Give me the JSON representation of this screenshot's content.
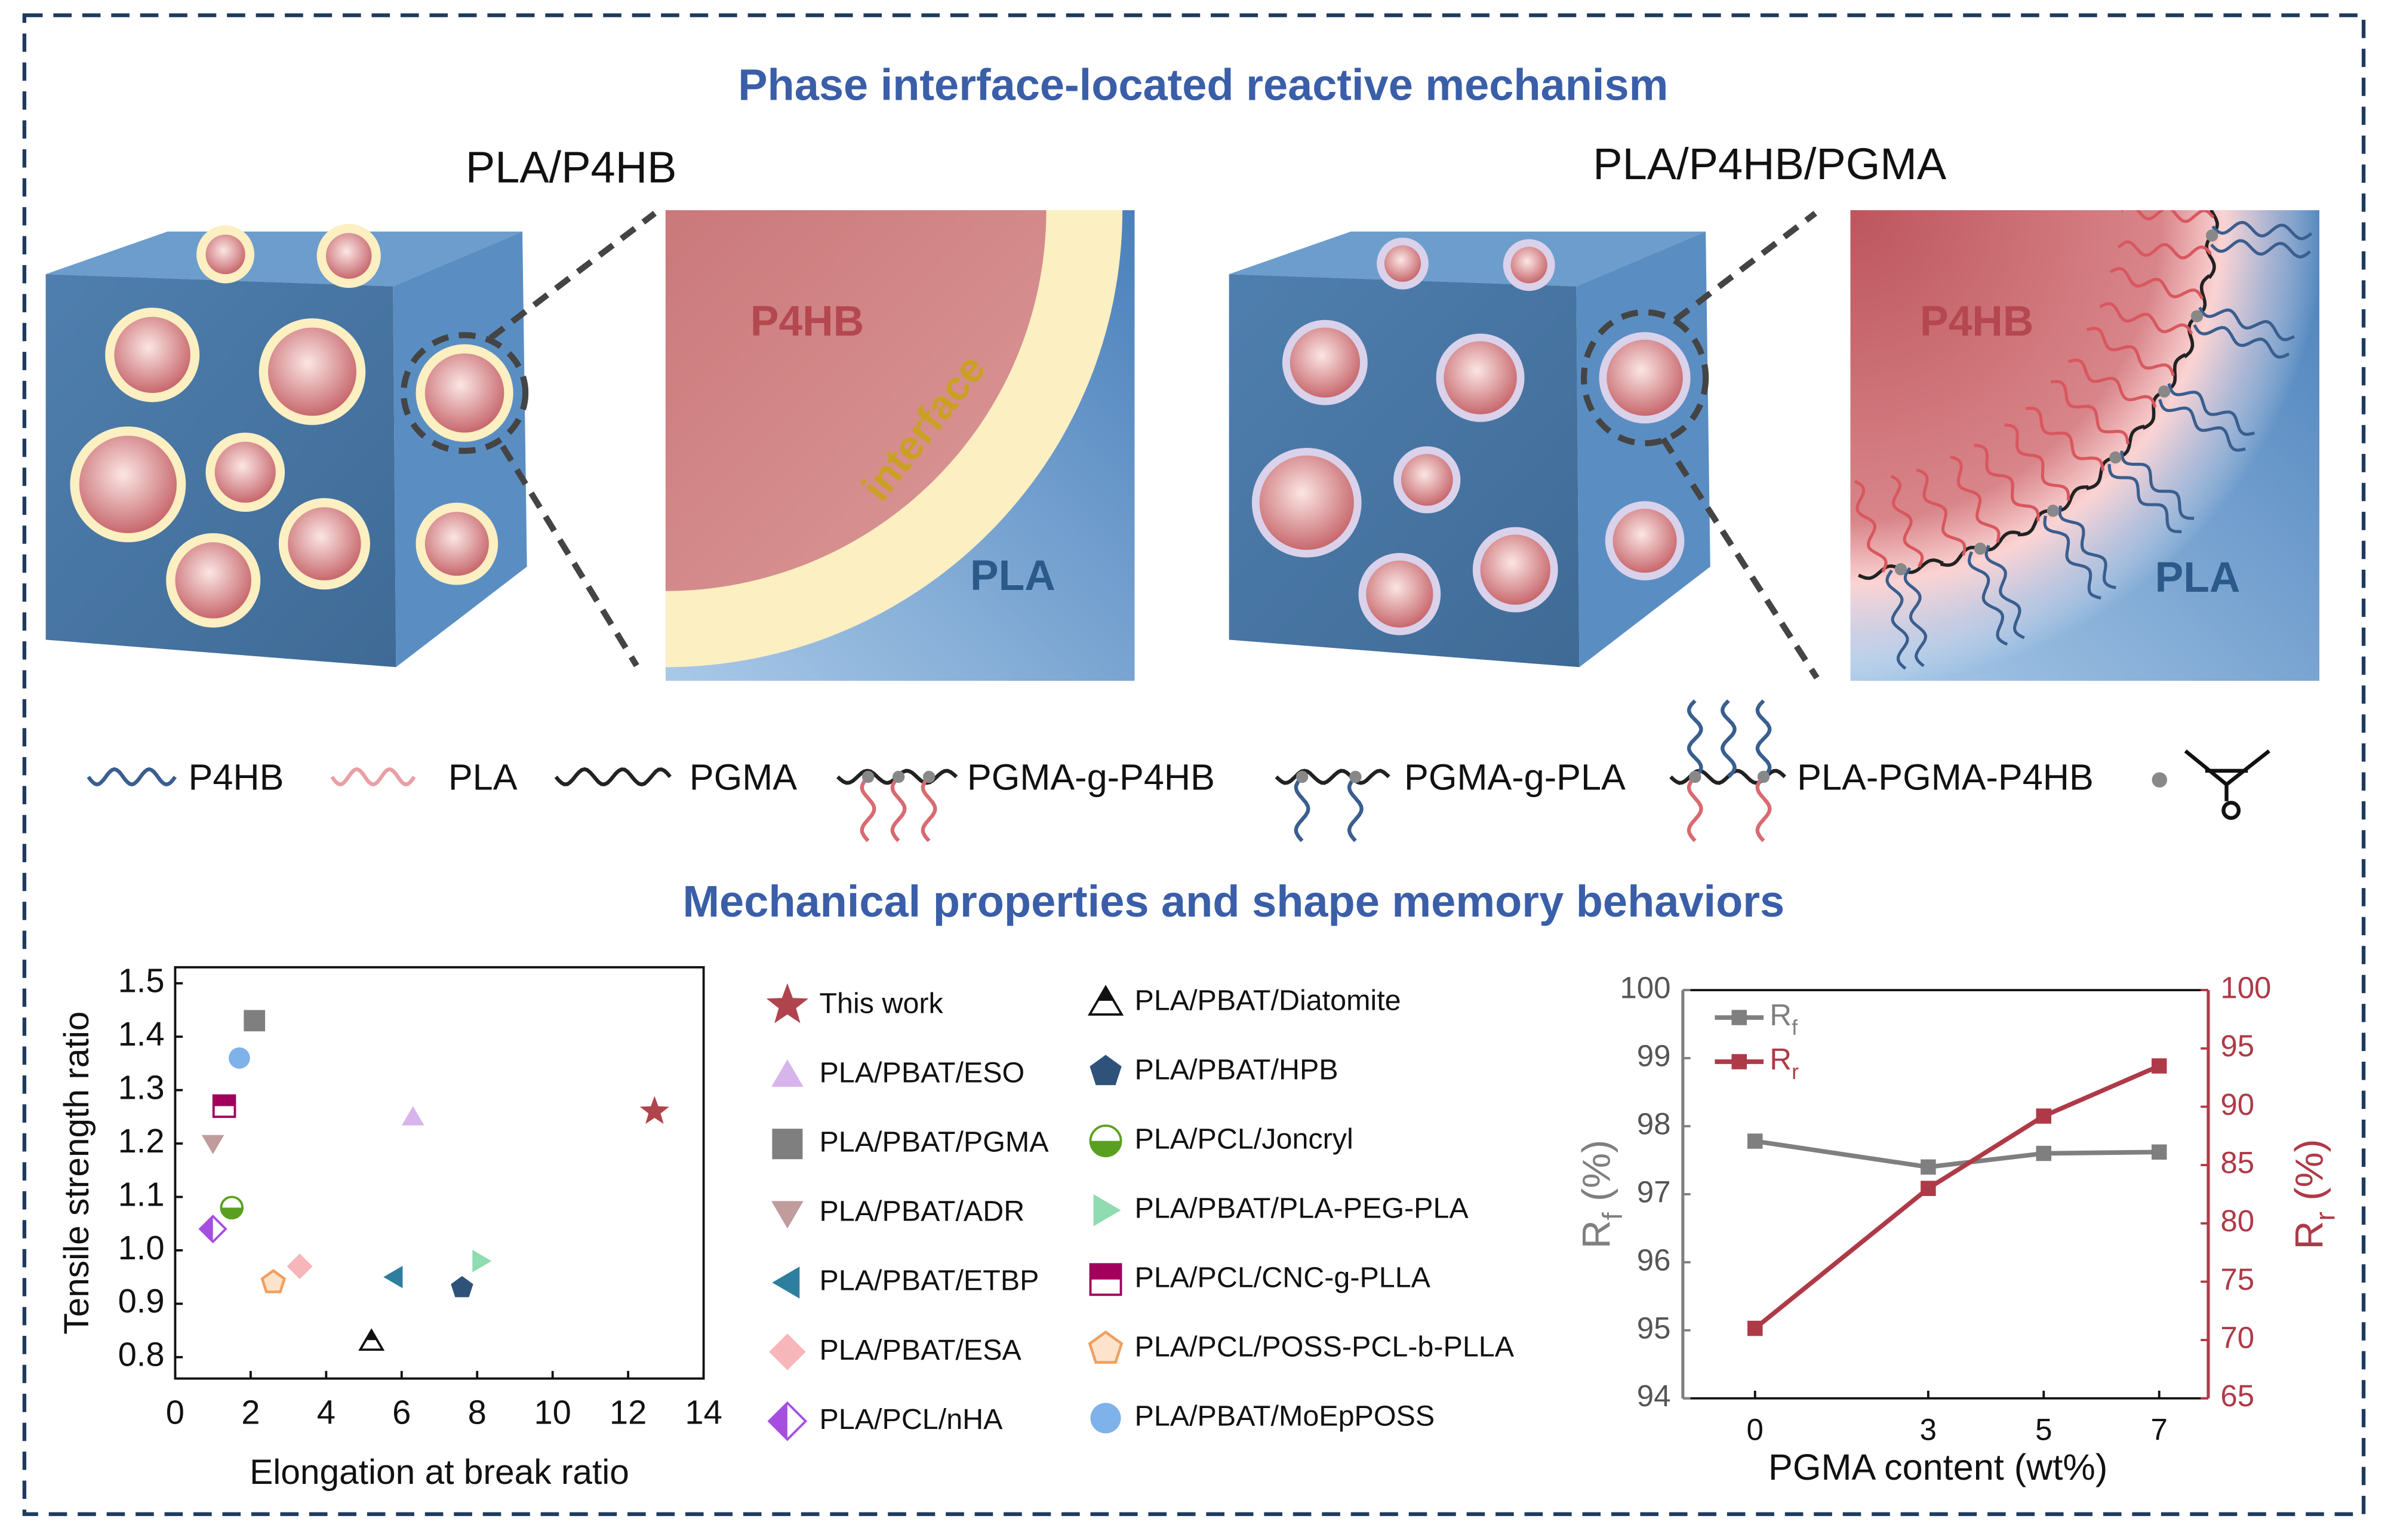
{
  "title": "Phase interface-located reactive mechanism",
  "mechanism": {
    "left": {
      "label": "PLA/P4HB",
      "zoom": {
        "core": "P4HB",
        "interface": "interface",
        "matrix": "PLA"
      }
    },
    "right": {
      "label": "PLA/P4HB/PGMA",
      "zoom": {
        "core": "P4HB",
        "matrix": "PLA"
      }
    }
  },
  "legend": [
    "P4HB",
    "PLA",
    "PGMA",
    "PGMA-g-P4HB",
    "PGMA-g-PLA",
    "PLA-PGMA-P4HB"
  ],
  "section_title": "Mechanical properties and shape memory behaviors",
  "chart_data": [
    {
      "type": "scatter",
      "x_label": "Elongation at break ratio",
      "y_label": "Tensile strength ratio",
      "xlim": [
        0,
        14
      ],
      "xticks": [
        0,
        2,
        4,
        6,
        8,
        10,
        12,
        14
      ],
      "ylim": [
        0.76,
        1.53
      ],
      "yticks": [
        0.8,
        0.9,
        {
          "value": 1,
          "label": "1.0"
        },
        1.1,
        1.2,
        1.3,
        1.4,
        1.5
      ],
      "series": [
        {
          "name": "This work",
          "color": "#b0444c",
          "marker": "star",
          "x": [
            12.7
          ],
          "y": [
            1.26
          ]
        },
        {
          "name": "PLA/PBAT/ESO",
          "color": "#d8b4ec",
          "marker": "tri-up",
          "x": [
            6.3
          ],
          "y": [
            1.25
          ]
        },
        {
          "name": "PLA/PBAT/PGMA",
          "color": "#7f7f7f",
          "marker": "square",
          "x": [
            2.1
          ],
          "y": [
            1.43
          ]
        },
        {
          "name": "PLA/PBAT/ADR",
          "color": "#c09c9c",
          "marker": "tri-down",
          "x": [
            1.0
          ],
          "y": [
            1.2
          ]
        },
        {
          "name": "PLA/PBAT/ETBP",
          "color": "#2e7e9e",
          "marker": "tri-left",
          "x": [
            5.8
          ],
          "y": [
            0.95
          ]
        },
        {
          "name": "PLA/PBAT/ESA",
          "color": "#f6b6ba",
          "marker": "diamond",
          "x": [
            3.3
          ],
          "y": [
            0.97
          ]
        },
        {
          "name": "PLA/PCL/nHA",
          "color": "#a54ee0",
          "marker": "half-diamond",
          "x": [
            1.0
          ],
          "y": [
            1.04
          ]
        },
        {
          "name": "PLA/PBAT/Diatomite",
          "color": "#111111",
          "marker": "tri-half",
          "x": [
            5.2
          ],
          "y": [
            0.83
          ]
        },
        {
          "name": "PLA/PBAT/HPB",
          "color": "#2f527a",
          "marker": "pentagon",
          "x": [
            7.6
          ],
          "y": [
            0.93
          ]
        },
        {
          "name": "PLA/PCL/Joncryl",
          "color": "#5aa020",
          "marker": "half-circle",
          "x": [
            1.5
          ],
          "y": [
            1.08
          ]
        },
        {
          "name": "PLA/PBAT/PLA-PEG-PLA",
          "color": "#8edcb0",
          "marker": "tri-right",
          "x": [
            8.1
          ],
          "y": [
            0.98
          ]
        },
        {
          "name": "PLA/PCL/CNC-g-PLLA",
          "color": "#a2005c",
          "marker": "half-square",
          "x": [
            1.3
          ],
          "y": [
            1.27
          ]
        },
        {
          "name": "PLA/PCL/POSS-PCL-b-PLLA",
          "color": "#f0a060",
          "marker": "pentagon-open",
          "x": [
            2.6
          ],
          "y": [
            0.94
          ]
        },
        {
          "name": "PLA/PBAT/MoEpPOSS",
          "color": "#7fb1ea",
          "marker": "circle",
          "x": [
            1.7
          ],
          "y": [
            1.36
          ]
        }
      ]
    },
    {
      "type": "line",
      "x_label": "PGMA content (wt%)",
      "y_label": "Rf (%)",
      "y2_label": "Rr (%)",
      "x": [
        0,
        3,
        5,
        7
      ],
      "xlim": [
        -1.25,
        7.85
      ],
      "xticks": [
        0,
        3,
        5,
        7
      ],
      "ylim": [
        94,
        100
      ],
      "yticks": [
        94,
        95,
        96,
        97,
        98,
        99,
        100
      ],
      "y2lim": [
        65,
        100
      ],
      "y2ticks": [
        65,
        70,
        75,
        80,
        85,
        90,
        95,
        100
      ],
      "series": [
        {
          "name": "Rf",
          "color": "#7f7f7f",
          "values": [
            97.78,
            97.4,
            97.6,
            97.62
          ]
        },
        {
          "name": "Rr",
          "color": "#ae3a48",
          "axis": "y2",
          "values": [
            71,
            83,
            89.2,
            93.5
          ]
        }
      ]
    }
  ]
}
